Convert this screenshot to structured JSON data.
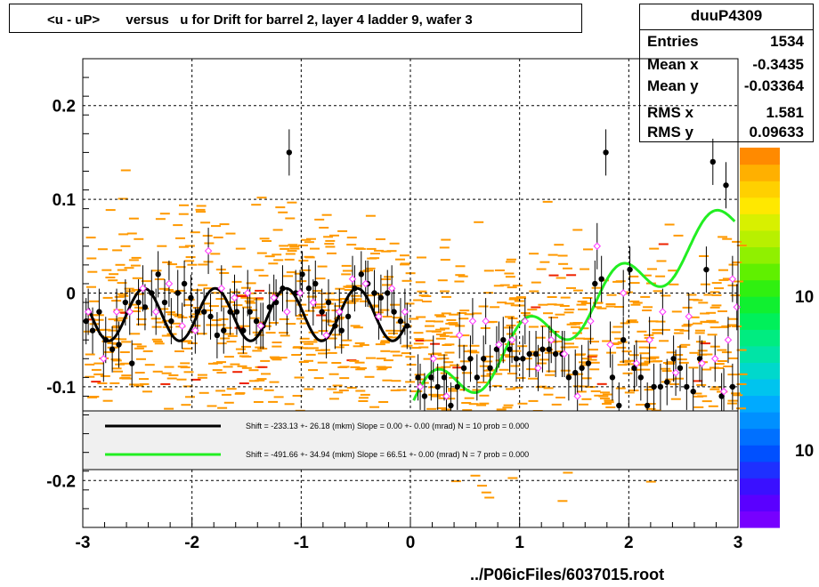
{
  "title": "<u - uP>       versus   u for Drift for barrel 2, layer 4 ladder 9, wafer 3",
  "stats": {
    "name": "duuP4309",
    "rows": [
      {
        "label": "Entries",
        "value": "1534"
      },
      {
        "label": "Mean x",
        "value": "-0.3435"
      },
      {
        "label": "Mean y",
        "value": "-0.03364"
      },
      {
        "label": "RMS x",
        "value": "1.581"
      },
      {
        "label": "RMS y",
        "value": "0.09633"
      }
    ]
  },
  "footer": "../P06icFiles/6037015.root",
  "legend": [
    {
      "color": "#000000",
      "text": "Shift =  -233.13 +- 26.18 (mkm) Slope =     0.00 +- 0.00 (mrad)  N = 10 prob = 0.000"
    },
    {
      "color": "#00ee00",
      "text": "Shift =  -491.66 +- 34.94 (mkm) Slope =    66.51 +- 0.00 (mrad)  N = 7 prob = 0.000"
    }
  ],
  "colors": {
    "hist": "#ff9900",
    "fit_black": "#000000",
    "fit_green": "#22ee22",
    "markers_open": "#ff33ff"
  },
  "chart_data": {
    "type": "scatter",
    "xlim": [
      -3,
      3
    ],
    "ylim": [
      -0.25,
      0.25
    ],
    "x_ticks": [
      -3,
      -2,
      -1,
      0,
      1,
      2,
      3
    ],
    "x_tick_labels": [
      "-3",
      "-2",
      "-1",
      "0",
      "1",
      "2",
      "3"
    ],
    "y_ticks": [
      -0.2,
      -0.1,
      0,
      0.1,
      0.2
    ],
    "y_tick_labels": [
      "-0.2",
      "-0.1",
      "0",
      "0.1",
      "0.2"
    ],
    "grid": true,
    "colorbar_labels": [
      "10",
      "10"
    ],
    "series": [
      {
        "marker": "filled",
        "points": [
          [
            -2.97,
            -0.03
          ],
          [
            -2.91,
            -0.04
          ],
          [
            -2.85,
            -0.02
          ],
          [
            -2.79,
            -0.05
          ],
          [
            -2.73,
            -0.06
          ],
          [
            -2.67,
            -0.055
          ],
          [
            -2.61,
            -0.01
          ],
          [
            -2.55,
            -0.075
          ],
          [
            -2.49,
            -0.01
          ],
          [
            -2.43,
            -0.015
          ],
          [
            -2.37,
            0.0
          ],
          [
            -2.31,
            0.02
          ],
          [
            -2.25,
            -0.01
          ],
          [
            -2.19,
            -0.03
          ],
          [
            -2.13,
            0.0
          ],
          [
            -2.07,
            0.01
          ],
          [
            -2.01,
            -0.005
          ],
          [
            -1.95,
            -0.02
          ],
          [
            -1.89,
            -0.02
          ],
          [
            -1.83,
            -0.025
          ],
          [
            -1.77,
            -0.045
          ],
          [
            -1.71,
            -0.04
          ],
          [
            -1.65,
            -0.02
          ],
          [
            -1.59,
            -0.02
          ],
          [
            -1.53,
            -0.04
          ],
          [
            -1.47,
            -0.02
          ],
          [
            -1.41,
            -0.03
          ],
          [
            -1.35,
            -0.035
          ],
          [
            -1.29,
            -0.015
          ],
          [
            -1.23,
            -0.01
          ],
          [
            -1.17,
            0.005
          ],
          [
            -1.11,
            0.15
          ],
          [
            -1.05,
            0.0
          ],
          [
            -0.99,
            0.02
          ],
          [
            -0.93,
            0.005
          ],
          [
            -0.87,
            0.01
          ],
          [
            -0.81,
            -0.02
          ],
          [
            -0.75,
            -0.01
          ],
          [
            -0.69,
            -0.035
          ],
          [
            -0.63,
            -0.04
          ],
          [
            -0.57,
            -0.025
          ],
          [
            -0.51,
            0.005
          ],
          [
            -0.45,
            0.02
          ],
          [
            -0.39,
            0.01
          ],
          [
            -0.33,
            0.0
          ],
          [
            -0.27,
            -0.005
          ],
          [
            -0.21,
            0.0
          ],
          [
            -0.15,
            -0.02
          ],
          [
            -0.09,
            -0.03
          ],
          [
            -0.03,
            -0.035
          ],
          [
            0.07,
            -0.09
          ],
          [
            0.13,
            -0.11
          ],
          [
            0.19,
            -0.09
          ],
          [
            0.25,
            -0.1
          ],
          [
            0.31,
            -0.09
          ],
          [
            0.37,
            -0.12
          ],
          [
            0.43,
            -0.1
          ],
          [
            0.49,
            -0.08
          ],
          [
            0.55,
            -0.07
          ],
          [
            0.61,
            -0.09
          ],
          [
            0.67,
            -0.07
          ],
          [
            0.73,
            -0.08
          ],
          [
            0.79,
            -0.06
          ],
          [
            0.85,
            -0.05
          ],
          [
            0.91,
            -0.06
          ],
          [
            0.97,
            -0.07
          ],
          [
            1.03,
            -0.07
          ],
          [
            1.09,
            -0.065
          ],
          [
            1.15,
            -0.065
          ],
          [
            1.21,
            -0.06
          ],
          [
            1.27,
            -0.06
          ],
          [
            1.33,
            -0.065
          ],
          [
            1.39,
            -0.065
          ],
          [
            1.45,
            -0.09
          ],
          [
            1.51,
            -0.085
          ],
          [
            1.57,
            -0.08
          ],
          [
            1.63,
            -0.075
          ],
          [
            1.69,
            0.01
          ],
          [
            1.75,
            0.015
          ],
          [
            1.79,
            0.15
          ],
          [
            1.85,
            -0.09
          ],
          [
            1.91,
            -0.12
          ],
          [
            1.95,
            -0.05
          ],
          [
            2.01,
            0.025
          ],
          [
            2.05,
            -0.08
          ],
          [
            2.11,
            -0.09
          ],
          [
            2.17,
            -0.12
          ],
          [
            2.23,
            -0.1
          ],
          [
            2.29,
            -0.1
          ],
          [
            2.35,
            -0.095
          ],
          [
            2.41,
            -0.07
          ],
          [
            2.47,
            -0.08
          ],
          [
            2.53,
            -0.1
          ],
          [
            2.59,
            -0.105
          ],
          [
            2.65,
            -0.07
          ],
          [
            2.71,
            0.025
          ],
          [
            2.77,
            0.14
          ],
          [
            2.85,
            -0.11
          ],
          [
            2.89,
            0.115
          ],
          [
            2.95,
            -0.1
          ]
        ]
      },
      {
        "marker": "open",
        "points": [
          [
            -2.95,
            -0.02
          ],
          [
            -2.81,
            -0.07
          ],
          [
            -2.69,
            -0.02
          ],
          [
            -2.57,
            -0.02
          ],
          [
            -2.45,
            0.005
          ],
          [
            -2.33,
            -0.02
          ],
          [
            -2.21,
            0.01
          ],
          [
            -2.09,
            -0.035
          ],
          [
            -1.97,
            -0.04
          ],
          [
            -1.85,
            0.045
          ],
          [
            -1.73,
            0.005
          ],
          [
            -1.61,
            -0.005
          ],
          [
            -1.49,
            0.0
          ],
          [
            -1.37,
            -0.035
          ],
          [
            -1.25,
            -0.005
          ],
          [
            -1.13,
            -0.02
          ],
          [
            -1.01,
            0.0
          ],
          [
            -0.89,
            -0.01
          ],
          [
            -0.77,
            -0.045
          ],
          [
            -0.65,
            -0.02
          ],
          [
            -0.53,
            0.015
          ],
          [
            -0.41,
            0.01
          ],
          [
            -0.29,
            -0.025
          ],
          [
            -0.17,
            0.005
          ],
          [
            -0.05,
            -0.02
          ],
          [
            0.09,
            -0.1
          ],
          [
            0.21,
            -0.07
          ],
          [
            0.33,
            -0.11
          ],
          [
            0.45,
            -0.045
          ],
          [
            0.57,
            -0.03
          ],
          [
            0.69,
            -0.03
          ],
          [
            0.81,
            -0.055
          ],
          [
            0.93,
            -0.05
          ],
          [
            1.05,
            -0.03
          ],
          [
            1.17,
            -0.08
          ],
          [
            1.29,
            -0.05
          ],
          [
            1.41,
            -0.065
          ],
          [
            1.53,
            -0.11
          ],
          [
            1.65,
            -0.03
          ],
          [
            1.71,
            0.05
          ],
          [
            1.83,
            -0.055
          ],
          [
            1.95,
            0.0
          ],
          [
            2.07,
            -0.075
          ],
          [
            2.19,
            -0.05
          ],
          [
            2.31,
            -0.02
          ],
          [
            2.43,
            -0.085
          ],
          [
            2.55,
            -0.025
          ],
          [
            2.67,
            -0.075
          ],
          [
            2.79,
            -0.07
          ],
          [
            2.87,
            -0.105
          ],
          [
            2.91,
            -0.05
          ],
          [
            2.95,
            0.015
          ],
          [
            2.99,
            -0.015
          ]
        ]
      }
    ],
    "fits": [
      {
        "color": "#000000",
        "x_range": [
          -2.95,
          -0.05
        ],
        "base": -0.023,
        "amplitude": 0.028,
        "period": 0.65
      },
      {
        "color": "#22ee22",
        "x_range": [
          0.03,
          2.97
        ],
        "base": -0.12,
        "slope": 0.0665,
        "amplitude": 0.025,
        "period": 0.85
      }
    ]
  }
}
